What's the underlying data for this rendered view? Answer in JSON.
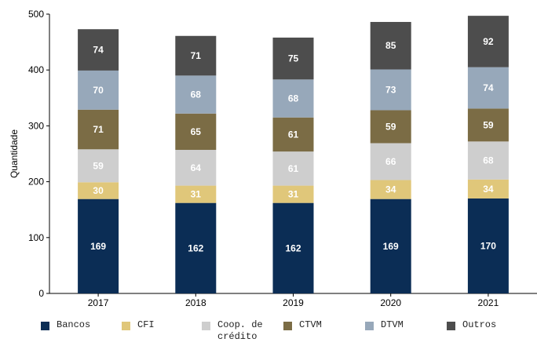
{
  "chart_data": {
    "type": "bar",
    "stacked": true,
    "categories": [
      "2017",
      "2018",
      "2019",
      "2020",
      "2021"
    ],
    "ylabel": "Quantidade",
    "xlabel": "",
    "ylim": [
      0,
      500
    ],
    "yticks": [
      0,
      100,
      200,
      300,
      400,
      500
    ],
    "grid": false,
    "legend_position": "bottom",
    "series": [
      {
        "name": "Bancos",
        "color": "#0b2d55",
        "label_color": "#ffffff",
        "values": [
          169,
          162,
          162,
          169,
          170
        ]
      },
      {
        "name": "CFI",
        "color": "#e0c77a",
        "label_color": "#ffffff",
        "values": [
          30,
          31,
          31,
          34,
          34
        ]
      },
      {
        "name": "Coop. de crédito",
        "color": "#cecece",
        "label_color": "#ffffff",
        "values": [
          59,
          64,
          61,
          66,
          68
        ]
      },
      {
        "name": "CTVM",
        "color": "#7b6c45",
        "label_color": "#ffffff",
        "values": [
          71,
          65,
          61,
          59,
          59
        ]
      },
      {
        "name": "DTVM",
        "color": "#97a8ba",
        "label_color": "#ffffff",
        "values": [
          70,
          68,
          68,
          73,
          74
        ]
      },
      {
        "name": "Outros",
        "color": "#4d4d4d",
        "label_color": "#ffffff",
        "values": [
          74,
          71,
          75,
          85,
          92
        ]
      }
    ]
  }
}
